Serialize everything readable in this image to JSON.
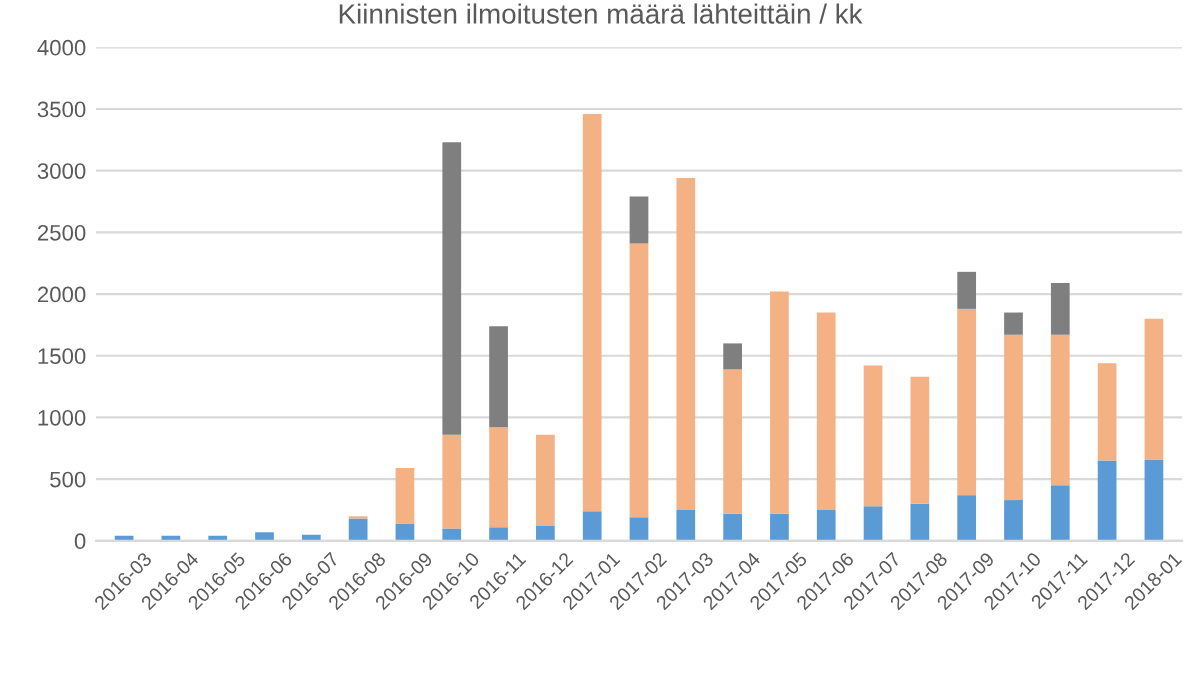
{
  "chart_data": {
    "type": "bar",
    "title": "Kiinnisten ilmoitusten määrä lähteittäin / kk",
    "stacked": true,
    "categories": [
      "2016-03",
      "2016-04",
      "2016-05",
      "2016-06",
      "2016-07",
      "2016-08",
      "2016-09",
      "2016-10",
      "2016-11",
      "2016-12",
      "2017-01",
      "2017-02",
      "2017-03",
      "2017-04",
      "2017-05",
      "2017-06",
      "2017-07",
      "2017-08",
      "2017-09",
      "2017-10",
      "2017-11",
      "2017-12",
      "2018-01"
    ],
    "series": [
      {
        "color": "#5b9bd5",
        "values": [
          40,
          40,
          40,
          70,
          50,
          180,
          140,
          100,
          110,
          120,
          240,
          190,
          250,
          220,
          220,
          250,
          280,
          300,
          370,
          330,
          450,
          650,
          660
        ]
      },
      {
        "color": "#f4b183",
        "values": [
          null,
          null,
          null,
          null,
          null,
          20,
          450,
          760,
          810,
          740,
          3220,
          2220,
          2690,
          1170,
          1800,
          1600,
          1140,
          1030,
          1510,
          1340,
          1220,
          790,
          1140
        ]
      },
      {
        "color": "#7f7f7f",
        "values": [
          null,
          null,
          null,
          null,
          null,
          null,
          null,
          2370,
          820,
          null,
          null,
          380,
          null,
          210,
          null,
          null,
          null,
          null,
          300,
          180,
          420,
          null,
          null
        ]
      }
    ],
    "ylim": [
      0,
      4000
    ],
    "yticks": [
      0,
      500,
      1000,
      1500,
      2000,
      2500,
      3000,
      3500,
      4000
    ],
    "grid": "y"
  }
}
